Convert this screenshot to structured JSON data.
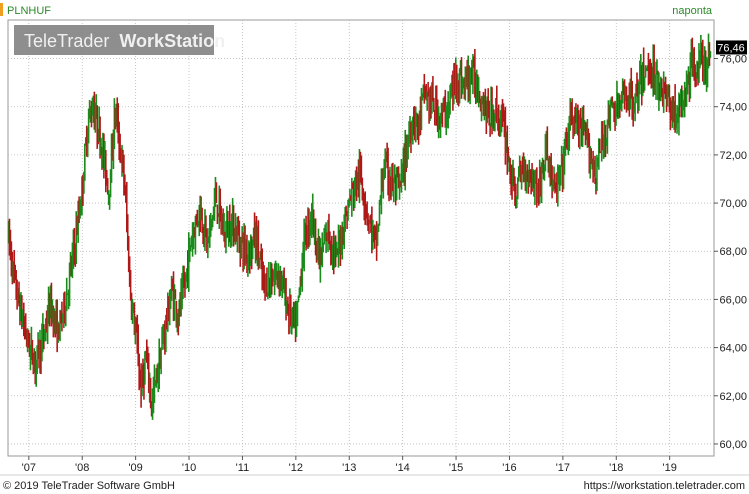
{
  "header": {
    "symbol": "PLNHUF",
    "period": "naponta"
  },
  "watermark": {
    "brand": "TeleTrader",
    "product": "WorkStation"
  },
  "footer": {
    "copyright": "© 2019 TeleTrader Software GmbH",
    "url": "https://workstation.teletrader.com"
  },
  "colors": {
    "up_candle": "#1a8a1a",
    "down_candle": "#b01818",
    "grid": "#b8b8b8",
    "last_price_bg": "#000000",
    "symbol_accent": "#f0a020",
    "period_text": "#2a8a2a",
    "watermark_bg": "#7a7a7a"
  },
  "chart_data": {
    "type": "candlestick",
    "frequency": "daily",
    "symbol": "PLNHUF",
    "last_price": "76,46",
    "ylim": [
      59.5,
      77.6
    ],
    "y_ticks": [
      "60,00",
      "62,00",
      "64,00",
      "66,00",
      "68,00",
      "70,00",
      "72,00",
      "74,00",
      "76,00"
    ],
    "y_tick_values": [
      60,
      62,
      64,
      66,
      68,
      70,
      72,
      74,
      76
    ],
    "x_ticks": [
      "'07",
      "'08",
      "'09",
      "'10",
      "'11",
      "'12",
      "'13",
      "'14",
      "'15",
      "'16",
      "'17",
      "'18",
      "'19"
    ],
    "x_tick_values": [
      2007.0,
      2008.0,
      2009.0,
      2010.0,
      2011.0,
      2012.0,
      2013.0,
      2014.0,
      2015.0,
      2016.0,
      2017.0,
      2018.0,
      2019.0
    ],
    "xlim": [
      2006.61,
      2019.83
    ],
    "grid": true,
    "path_x": [
      2006.62,
      2006.75,
      2006.88,
      2007.0,
      2007.12,
      2007.25,
      2007.4,
      2007.55,
      2007.7,
      2007.85,
      2008.0,
      2008.1,
      2008.2,
      2008.35,
      2008.5,
      2008.62,
      2008.72,
      2008.8,
      2008.9,
      2009.0,
      2009.1,
      2009.2,
      2009.3,
      2009.42,
      2009.55,
      2009.68,
      2009.8,
      2009.92,
      2010.05,
      2010.2,
      2010.35,
      2010.5,
      2010.65,
      2010.8,
      2010.95,
      2011.1,
      2011.25,
      2011.4,
      2011.55,
      2011.7,
      2011.85,
      2012.0,
      2012.15,
      2012.3,
      2012.45,
      2012.6,
      2012.75,
      2012.9,
      2013.05,
      2013.2,
      2013.35,
      2013.5,
      2013.65,
      2013.8,
      2013.95,
      2014.1,
      2014.2,
      2014.3,
      2014.4,
      2014.55,
      2014.7,
      2014.85,
      2015.0,
      2015.15,
      2015.3,
      2015.45,
      2015.6,
      2015.75,
      2015.9,
      2016.0,
      2016.1,
      2016.25,
      2016.4,
      2016.55,
      2016.7,
      2016.85,
      2017.0,
      2017.15,
      2017.3,
      2017.45,
      2017.6,
      2017.75,
      2017.9,
      2018.05,
      2018.2,
      2018.35,
      2018.5,
      2018.65,
      2018.8,
      2018.95,
      2019.1,
      2019.25,
      2019.4,
      2019.55,
      2019.68,
      2019.78
    ],
    "path_close": [
      68.6,
      66.5,
      65.2,
      64.1,
      63.4,
      64.2,
      65.8,
      64.6,
      66.1,
      68.1,
      70.6,
      73.3,
      74.1,
      72.6,
      70.5,
      73.9,
      72.1,
      70.6,
      66.3,
      64.6,
      62.3,
      63.6,
      61.6,
      63.1,
      64.8,
      66.4,
      65.3,
      66.6,
      68.6,
      69.8,
      68.3,
      70.3,
      68.7,
      69.2,
      68.5,
      67.9,
      68.6,
      66.5,
      66.9,
      67.1,
      65.6,
      64.8,
      68.4,
      69.6,
      67.5,
      68.9,
      67.6,
      69.2,
      70.4,
      71.2,
      69.5,
      68.2,
      71.6,
      70.8,
      70.6,
      72.6,
      73.6,
      73.2,
      74.6,
      74.1,
      73.6,
      73.9,
      75.3,
      74.9,
      75.4,
      74.6,
      73.6,
      73.8,
      73.1,
      71.6,
      70.3,
      71.5,
      71.2,
      70.6,
      72.2,
      70.3,
      71.6,
      73.6,
      73.1,
      72.6,
      71.2,
      72.6,
      73.9,
      73.9,
      74.6,
      74.2,
      75.3,
      75.6,
      74.9,
      74.4,
      73.6,
      74.1,
      75.6,
      75.9,
      75.6,
      76.46
    ]
  }
}
